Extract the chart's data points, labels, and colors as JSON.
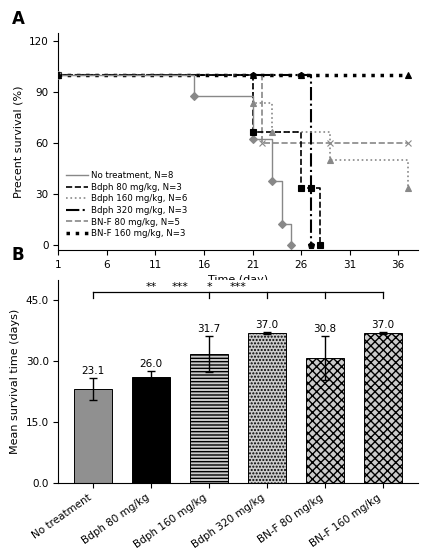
{
  "panel_A": {
    "xlabel": "Time (day)",
    "ylabel": "Precent survival (%)",
    "xlim": [
      1,
      38
    ],
    "ylim": [
      -3,
      125
    ],
    "xticks": [
      1,
      6,
      11,
      16,
      21,
      26,
      31,
      36
    ],
    "yticks": [
      0,
      30,
      60,
      90,
      120
    ],
    "curves": [
      {
        "label": "No treatment, N=8",
        "color": "#888888",
        "linestyle": "-",
        "marker": "D",
        "ms": 4,
        "lw": 1.0,
        "x": [
          1,
          15,
          21,
          23,
          24,
          25
        ],
        "y": [
          100,
          87.5,
          62.5,
          37.5,
          12.5,
          0
        ],
        "extend_x": null
      },
      {
        "label": "Bdph 80 mg/kg, N=3",
        "color": "#000000",
        "linestyle": "--",
        "marker": "s",
        "ms": 4,
        "lw": 1.2,
        "x": [
          1,
          21,
          26,
          27,
          28
        ],
        "y": [
          100,
          66.7,
          33.3,
          33.3,
          0
        ],
        "extend_x": null
      },
      {
        "label": "Bdph 160 mg/kg, N=6",
        "color": "#888888",
        "linestyle": ":",
        "marker": "^",
        "ms": 4,
        "lw": 1.2,
        "x": [
          1,
          21,
          23,
          29,
          37
        ],
        "y": [
          100,
          83.3,
          66.7,
          50,
          33.3
        ],
        "extend_x": 37
      },
      {
        "label": "Bdph 320 mg/kg, N=3",
        "color": "#000000",
        "linestyle": "-.",
        "marker": "p",
        "ms": 5,
        "lw": 1.5,
        "x": [
          1,
          21,
          26,
          27
        ],
        "y": [
          100,
          100,
          100,
          0
        ],
        "extend_x": null
      },
      {
        "label": "BN-F 80 mg/kg, N=5",
        "color": "#888888",
        "linestyle": "--",
        "marker": "x",
        "ms": 5,
        "lw": 1.2,
        "x": [
          1,
          22,
          29,
          37
        ],
        "y": [
          100,
          60,
          60,
          60
        ],
        "extend_x": 37
      },
      {
        "label": "BN-F 160 mg/kg, N=3",
        "color": "#000000",
        "linestyle": ":",
        "marker": "^",
        "ms": 4,
        "lw": 2.5,
        "x": [
          1,
          21,
          26,
          37
        ],
        "y": [
          100,
          100,
          100,
          100
        ],
        "extend_x": 37
      }
    ]
  },
  "panel_B": {
    "ylabel": "Mean survival time (days)",
    "ylim": [
      0,
      50
    ],
    "ytick_vals": [
      0,
      15,
      30,
      45
    ],
    "ytick_labels": [
      "0.0",
      "15.0",
      "30.0",
      "45.0"
    ],
    "categories": [
      "No treatment",
      "Bdph 80 mg/kg",
      "Bdph 160 mg/kg",
      "Bdph 320 mg/kg",
      "BN-F 80 mg/kg",
      "BN-F 160 mg/kg"
    ],
    "values": [
      23.1,
      26.0,
      31.7,
      37.0,
      30.8,
      37.0
    ],
    "errors": [
      2.8,
      1.5,
      4.5,
      0.3,
      5.5,
      0.3
    ],
    "bar_face_colors": [
      "#909090",
      "#000000",
      "#cccccc",
      "#cccccc",
      "#cccccc",
      "#cccccc"
    ],
    "hatch_patterns": [
      "",
      "",
      "-----",
      ".....",
      "xxxx",
      "xxxx"
    ],
    "hatch_colors": [
      "#909090",
      "#000000",
      "#888888",
      "#555555",
      "#aaaaaa",
      "#aaaaaa"
    ],
    "sig_bars": [
      2,
      3,
      4,
      5
    ],
    "sig_labels": [
      "**",
      "***",
      "*",
      "***"
    ],
    "bracket_y": 47.0,
    "bracket_drop": 1.5
  }
}
